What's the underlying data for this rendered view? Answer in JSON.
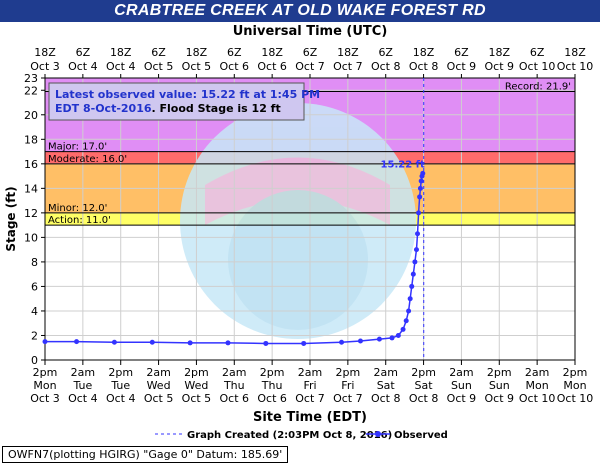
{
  "title": "CRABTREE CREEK AT OLD WAKE FOREST RD",
  "top_axis_title": "Universal Time (UTC)",
  "bottom_axis_title": "Site Time (EDT)",
  "y_axis_title": "Stage (ft)",
  "info_box": {
    "line1": "Latest observed value: 15.22 ft at 1:45 PM",
    "line2a": "EDT 8-Oct-2016",
    "line2b": ". Flood Stage is 12 ft"
  },
  "legend": {
    "created_label": "Graph Created (2:03PM Oct 8, 2016)",
    "observed_label": "Observed"
  },
  "footer": "OWFN7(plotting HGIRG) \"Gage 0\" Datum: 185.69'",
  "latest_value_label": "15.22 ft",
  "colors": {
    "title_bg": "#1f3c8f",
    "record": "#e08ef5",
    "major": "#cc66ff",
    "moderate": "#ff6b6b",
    "minor": "#ffbf66",
    "action": "#ffff66",
    "observed": "#3333ff",
    "created_line": "#3333ff"
  },
  "chart_data": {
    "type": "line",
    "ylabel": "Stage (ft)",
    "xlabel": "Site Time (EDT)",
    "ylim": [
      0,
      23
    ],
    "y_ticks": [
      0,
      2,
      4,
      6,
      8,
      10,
      12,
      14,
      16,
      18,
      20,
      22,
      23
    ],
    "grid": true,
    "x_ticks_bottom": [
      {
        "time": "2pm",
        "day": "Mon",
        "date": "Oct 3"
      },
      {
        "time": "2am",
        "day": "Tue",
        "date": "Oct 4"
      },
      {
        "time": "2pm",
        "day": "Tue",
        "date": "Oct 4"
      },
      {
        "time": "2am",
        "day": "Wed",
        "date": "Oct 5"
      },
      {
        "time": "2pm",
        "day": "Wed",
        "date": "Oct 5"
      },
      {
        "time": "2am",
        "day": "Thu",
        "date": "Oct 6"
      },
      {
        "time": "2pm",
        "day": "Thu",
        "date": "Oct 6"
      },
      {
        "time": "2am",
        "day": "Fri",
        "date": "Oct 7"
      },
      {
        "time": "2pm",
        "day": "Fri",
        "date": "Oct 7"
      },
      {
        "time": "2am",
        "day": "Sat",
        "date": "Oct 8"
      },
      {
        "time": "2pm",
        "day": "Sat",
        "date": "Oct 8"
      },
      {
        "time": "2am",
        "day": "Sun",
        "date": "Oct 9"
      },
      {
        "time": "2pm",
        "day": "Sun",
        "date": "Oct 9"
      },
      {
        "time": "2am",
        "day": "Mon",
        "date": "Oct 10"
      },
      {
        "time": "2pm",
        "day": "Mon",
        "date": "Oct 10"
      }
    ],
    "x_ticks_top": [
      {
        "time": "18Z",
        "date": "Oct 3"
      },
      {
        "time": "6Z",
        "date": "Oct 4"
      },
      {
        "time": "18Z",
        "date": "Oct 4"
      },
      {
        "time": "6Z",
        "date": "Oct 5"
      },
      {
        "time": "18Z",
        "date": "Oct 5"
      },
      {
        "time": "6Z",
        "date": "Oct 6"
      },
      {
        "time": "18Z",
        "date": "Oct 6"
      },
      {
        "time": "6Z",
        "date": "Oct 7"
      },
      {
        "time": "18Z",
        "date": "Oct 7"
      },
      {
        "time": "6Z",
        "date": "Oct 8"
      },
      {
        "time": "18Z",
        "date": "Oct 8"
      },
      {
        "time": "6Z",
        "date": "Oct 9"
      },
      {
        "time": "18Z",
        "date": "Oct 9"
      },
      {
        "time": "6Z",
        "date": "Oct 10"
      },
      {
        "time": "18Z",
        "date": "Oct 10"
      }
    ],
    "flood_categories": [
      {
        "name": "Record",
        "label": "Record: 21.9'",
        "value": 21.9
      },
      {
        "name": "Major",
        "label": "Major: 17.0'",
        "value": 17.0
      },
      {
        "name": "Moderate",
        "label": "Moderate: 16.0'",
        "value": 16.0
      },
      {
        "name": "Minor",
        "label": "Minor: 12.0'",
        "value": 12.0
      },
      {
        "name": "Action",
        "label": "Action: 11.0'",
        "value": 11.0
      }
    ],
    "graph_created": "2016-10-08 14:03",
    "series": [
      {
        "name": "Observed",
        "points": [
          [
            "2016-10-03 14:00",
            1.5
          ],
          [
            "2016-10-04 00:00",
            1.5
          ],
          [
            "2016-10-04 12:00",
            1.45
          ],
          [
            "2016-10-05 00:00",
            1.45
          ],
          [
            "2016-10-05 12:00",
            1.4
          ],
          [
            "2016-10-06 00:00",
            1.4
          ],
          [
            "2016-10-06 12:00",
            1.35
          ],
          [
            "2016-10-07 00:00",
            1.35
          ],
          [
            "2016-10-07 12:00",
            1.45
          ],
          [
            "2016-10-07 18:00",
            1.55
          ],
          [
            "2016-10-08 00:00",
            1.7
          ],
          [
            "2016-10-08 04:00",
            1.8
          ],
          [
            "2016-10-08 06:00",
            2.0
          ],
          [
            "2016-10-08 07:30",
            2.5
          ],
          [
            "2016-10-08 08:30",
            3.2
          ],
          [
            "2016-10-08 09:15",
            4.0
          ],
          [
            "2016-10-08 09:45",
            5.0
          ],
          [
            "2016-10-08 10:15",
            6.0
          ],
          [
            "2016-10-08 10:45",
            7.0
          ],
          [
            "2016-10-08 11:15",
            8.0
          ],
          [
            "2016-10-08 11:45",
            9.0
          ],
          [
            "2016-10-08 12:05",
            10.3
          ],
          [
            "2016-10-08 12:25",
            12.0
          ],
          [
            "2016-10-08 12:45",
            13.3
          ],
          [
            "2016-10-08 13:00",
            14.0
          ],
          [
            "2016-10-08 13:15",
            14.6
          ],
          [
            "2016-10-08 13:30",
            15.0
          ],
          [
            "2016-10-08 13:45",
            15.22
          ]
        ]
      }
    ]
  }
}
